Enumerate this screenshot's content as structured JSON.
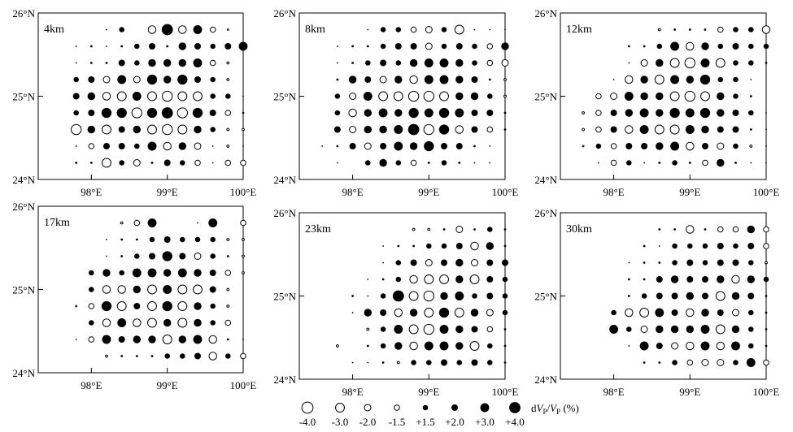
{
  "figure": {
    "lon_ticks": [
      "98°E",
      "99°E",
      "100°E"
    ],
    "lat_ticks": [
      "26°N",
      "25°N",
      "24°N"
    ],
    "legend": {
      "label": "dVP/VP (%)",
      "label_html_parts": [
        "d",
        "V",
        "P",
        "/",
        "V",
        "P",
        " (%)"
      ],
      "entries": [
        {
          "value": -4.0,
          "label": "-4.0",
          "style": "open"
        },
        {
          "value": -3.0,
          "label": "-3.0",
          "style": "open"
        },
        {
          "value": -2.0,
          "label": "-2.0",
          "style": "open"
        },
        {
          "value": -1.5,
          "label": "-1.5",
          "style": "open"
        },
        {
          "value": 1.5,
          "label": "+1.5",
          "style": "filled"
        },
        {
          "value": 2.0,
          "label": "+2.0",
          "style": "filled"
        },
        {
          "value": 3.0,
          "label": "+3.0",
          "style": "filled"
        },
        {
          "value": 4.0,
          "label": "+4.0",
          "style": "filled"
        }
      ]
    }
  },
  "chart_data": [
    {
      "type": "scatter",
      "title": "4km",
      "xlabel": "",
      "ylabel": "",
      "xlim": [
        97.3,
        100.0
      ],
      "ylim": [
        24.0,
        26.0
      ],
      "lon_start": 97.6,
      "lat_start": 25.8,
      "step": 0.2,
      "grid_values": [
        [
          0,
          0,
          0,
          0.5,
          1.5,
          0,
          -2.5,
          4,
          -2.5,
          3,
          -1.5,
          -0.5,
          0
        ],
        [
          0,
          0.5,
          1,
          0.5,
          1,
          1.5,
          2,
          1,
          2.5,
          2,
          1.5,
          2,
          3
        ],
        [
          0,
          0.5,
          1,
          1,
          2,
          1.5,
          2.5,
          2.5,
          2.5,
          3,
          -1.5,
          -1,
          0
        ],
        [
          0,
          1.5,
          2,
          -2,
          3,
          -2,
          3.5,
          2.5,
          3.5,
          2,
          1.5,
          -1,
          0
        ],
        [
          0,
          2,
          2.5,
          -2.5,
          -3,
          3,
          -3,
          -3.5,
          -3,
          -3,
          1.5,
          1.5,
          0.5
        ],
        [
          0,
          1.5,
          2,
          3.5,
          3.5,
          -3.5,
          3.5,
          4,
          -3.5,
          3.5,
          2,
          -1.5,
          1
        ],
        [
          0,
          -3.5,
          2.5,
          -3,
          2,
          2.5,
          -3,
          -3.5,
          -3,
          2.5,
          1.5,
          -1,
          -1
        ],
        [
          0,
          0.5,
          -1.5,
          2,
          2,
          1.5,
          3,
          -2.5,
          2.5,
          -2,
          0.5,
          -1,
          0.5
        ],
        [
          0,
          1,
          1,
          -3,
          1.5,
          -2,
          1,
          2,
          1.5,
          -1.5,
          0.5,
          -1.5,
          -1.5
        ]
      ]
    },
    {
      "type": "scatter",
      "title": "8km",
      "xlabel": "",
      "ylabel": "",
      "xlim": [
        97.3,
        100.0
      ],
      "ylim": [
        24.0,
        26.0
      ],
      "lon_start": 97.6,
      "lat_start": 25.8,
      "step": 0.2,
      "grid_values": [
        [
          0,
          0,
          0,
          0.5,
          1.5,
          1.5,
          -1.5,
          -2,
          1.5,
          -3,
          0.5,
          0.5,
          0.5
        ],
        [
          0,
          0.5,
          1,
          1,
          1.5,
          2,
          2,
          -2,
          1.5,
          2,
          1.5,
          -1.5,
          2.5
        ],
        [
          0,
          0.5,
          1,
          1.5,
          2,
          1.5,
          2.5,
          3,
          3,
          2.5,
          1.5,
          -1.5,
          -2
        ],
        [
          0,
          1,
          2.5,
          2,
          -2,
          2.5,
          -2.5,
          3,
          3,
          2.5,
          2,
          1,
          -1
        ],
        [
          0,
          1.5,
          -2,
          3,
          -3,
          -3,
          -3.5,
          -3.5,
          -3,
          2.5,
          2.5,
          1.5,
          -1
        ],
        [
          0,
          1.5,
          -2.5,
          2.5,
          3,
          2.5,
          3.5,
          3,
          3.5,
          3,
          2,
          2,
          1
        ],
        [
          0,
          2,
          -2,
          2.5,
          2.5,
          3,
          4,
          -3.5,
          3.5,
          -2.5,
          2,
          -1.5,
          1
        ],
        [
          0.5,
          1,
          2,
          -2,
          2,
          3,
          2.5,
          3.5,
          2,
          2,
          1,
          0.5,
          0
        ],
        [
          0,
          0.5,
          0,
          1.5,
          2.5,
          1.5,
          -1.5,
          1,
          1.5,
          1,
          0.5,
          0.5,
          0
        ]
      ]
    },
    {
      "type": "scatter",
      "title": "12km",
      "xlabel": "",
      "ylabel": "",
      "xlim": [
        97.3,
        100.0
      ],
      "ylim": [
        24.0,
        26.0
      ],
      "lon_start": 97.6,
      "lat_start": 25.8,
      "step": 0.2,
      "grid_values": [
        [
          0,
          0,
          0,
          0,
          0,
          -1,
          1,
          1,
          1,
          -1.5,
          1.5,
          1.5,
          -2.5
        ],
        [
          0,
          0,
          0,
          1,
          1,
          1.5,
          3,
          -2.5,
          2.5,
          1.5,
          2,
          1.5,
          1.5
        ],
        [
          0,
          0,
          0,
          0.5,
          -2,
          2.5,
          -3,
          -3.5,
          3,
          -3,
          1.5,
          1.5,
          1
        ],
        [
          0,
          0,
          0.5,
          -2.5,
          2.5,
          -3,
          3,
          2.5,
          3.5,
          1.5,
          1.5,
          0.5,
          0
        ],
        [
          0,
          -1.5,
          -2,
          3,
          2.5,
          2.5,
          -3,
          -3.5,
          -3,
          2.5,
          1.5,
          1,
          0
        ],
        [
          -1,
          -1.5,
          2,
          2.5,
          3,
          2.5,
          3.5,
          3,
          3.5,
          2.5,
          2,
          1.5,
          0.5
        ],
        [
          -1,
          -1.5,
          2,
          -2.5,
          3,
          -3,
          -3,
          3,
          2.5,
          2,
          2,
          1,
          0.5
        ],
        [
          -0.5,
          1.5,
          -1.5,
          2,
          2,
          2.5,
          3,
          -2.5,
          2,
          -2,
          1.5,
          -1,
          0.5
        ],
        [
          0,
          0.5,
          -1.5,
          1.5,
          0.5,
          1,
          1.5,
          1,
          -1.5,
          2.5,
          1,
          0.5,
          0.5
        ]
      ]
    },
    {
      "type": "scatter",
      "title": "17km",
      "xlabel": "",
      "ylabel": "",
      "xlim": [
        97.3,
        100.0
      ],
      "ylim": [
        24.0,
        26.0
      ],
      "lon_start": 97.6,
      "lat_start": 25.8,
      "step": 0.2,
      "grid_values": [
        [
          0,
          0,
          0,
          0,
          -1,
          -1.5,
          3,
          0,
          0,
          0.5,
          3,
          0,
          -1.5
        ],
        [
          0,
          0,
          0,
          0.5,
          1,
          1,
          1.5,
          2,
          1.5,
          1.5,
          1.5,
          -1,
          -1
        ],
        [
          0,
          0,
          0,
          0.5,
          1,
          1.5,
          2,
          3.5,
          2,
          -2,
          1.5,
          1,
          -1
        ],
        [
          0,
          0,
          1.5,
          2.5,
          1.5,
          3,
          3,
          2.5,
          3,
          2.5,
          2,
          -1.5,
          -1
        ],
        [
          0,
          0,
          1.5,
          -2.5,
          -2.5,
          2.5,
          -3,
          3,
          -3,
          -3,
          2,
          -1,
          0
        ],
        [
          0,
          -0.5,
          -1.5,
          3.5,
          -3,
          2,
          -3,
          3.5,
          -3,
          2.5,
          1.5,
          -1,
          0
        ],
        [
          0,
          0,
          1.5,
          -2.5,
          3,
          -2.5,
          -3,
          2.5,
          -3,
          2.5,
          1.5,
          -1.5,
          0
        ],
        [
          0,
          0.5,
          -1.5,
          3,
          2,
          2.5,
          2.5,
          -3,
          2.5,
          3,
          -2.5,
          1,
          0.5
        ],
        [
          0,
          0,
          0,
          -1,
          1,
          1,
          1,
          1.5,
          1.5,
          2,
          -2.5,
          1.5,
          -1.5
        ]
      ]
    },
    {
      "type": "scatter",
      "title": "23km",
      "xlabel": "",
      "ylabel": "",
      "xlim": [
        97.3,
        100.0
      ],
      "ylim": [
        24.0,
        26.0
      ],
      "lon_start": 97.6,
      "lat_start": 25.8,
      "step": 0.2,
      "grid_values": [
        [
          0,
          0,
          0,
          0,
          0,
          0,
          -1,
          -1,
          1,
          -2,
          1,
          1.5,
          1
        ],
        [
          0,
          0,
          0,
          0,
          0.5,
          1,
          1,
          1.5,
          1.5,
          2,
          -2.5,
          2.5,
          1
        ],
        [
          0,
          0,
          0,
          0,
          0.5,
          1.5,
          2,
          -2,
          2,
          2.5,
          -2,
          2,
          2
        ],
        [
          0,
          0,
          0,
          0.5,
          1,
          1.5,
          -2.5,
          -3,
          -3,
          2.5,
          -3,
          2,
          1.5
        ],
        [
          0,
          0,
          1,
          0.5,
          1.5,
          4,
          -3,
          -3.5,
          2.5,
          3,
          1.5,
          2,
          1.5
        ],
        [
          0,
          0,
          0.5,
          2.5,
          2,
          -2.5,
          2.5,
          -3,
          3.5,
          -3,
          2.5,
          -2,
          1.5
        ],
        [
          0,
          0,
          0,
          -1,
          1.5,
          3,
          -3,
          -3.5,
          3,
          2.5,
          2,
          -1.5,
          1
        ],
        [
          0,
          -1,
          0,
          1,
          1.5,
          2.5,
          -2.5,
          3,
          3,
          2.5,
          -3,
          1.5,
          1
        ],
        [
          0,
          0,
          0.5,
          0.5,
          1,
          -1,
          1.5,
          1.5,
          2,
          1.5,
          2,
          1.5,
          1
        ]
      ]
    },
    {
      "type": "scatter",
      "title": "30km",
      "xlabel": "",
      "ylabel": "",
      "xlim": [
        97.3,
        100.0
      ],
      "ylim": [
        24.0,
        26.0
      ],
      "lon_start": 97.6,
      "lat_start": 25.8,
      "step": 0.2,
      "grid_values": [
        [
          0,
          0,
          0,
          0,
          0,
          1,
          1,
          -2.5,
          1,
          -1.5,
          -1.5,
          2.5,
          -1.5
        ],
        [
          0,
          0,
          0,
          0,
          1,
          0.5,
          1.5,
          1.5,
          1.5,
          2,
          1.5,
          2,
          -1.5
        ],
        [
          0,
          0,
          0,
          0.5,
          1,
          1,
          1.5,
          2,
          1.5,
          2,
          2,
          1.5,
          -1
        ],
        [
          0,
          0,
          0,
          1,
          1,
          2,
          2.5,
          2,
          2,
          2.5,
          -2.5,
          2.5,
          1.5
        ],
        [
          0,
          0,
          0,
          1,
          1.5,
          2,
          2,
          2.5,
          2,
          -3,
          2.5,
          2,
          1
        ],
        [
          0,
          0,
          1.5,
          -2.5,
          -3,
          3,
          2,
          -2.5,
          2.5,
          2,
          -2,
          1.5,
          1
        ],
        [
          0,
          0,
          3,
          1.5,
          -2,
          2.5,
          2.5,
          2.5,
          3,
          -3,
          2.5,
          1.5,
          1
        ],
        [
          0,
          0,
          0,
          0.5,
          3,
          2,
          -2,
          -2.5,
          3,
          -2.5,
          3,
          1.5,
          1
        ],
        [
          0,
          0,
          0,
          0,
          1,
          1,
          1.5,
          -1.5,
          -2,
          -2,
          1.5,
          3,
          -1.5
        ]
      ]
    }
  ]
}
